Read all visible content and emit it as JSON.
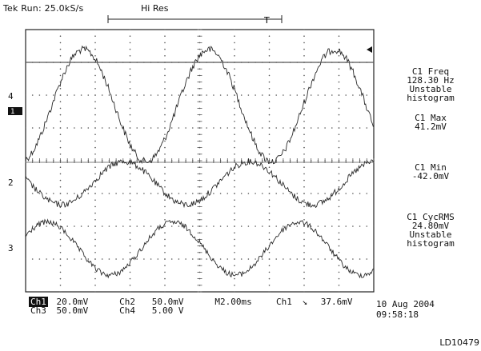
{
  "header": {
    "status": "Tek Run: 25.0kS/s",
    "mode": "Hi Res",
    "trigger_marker": "T"
  },
  "screen": {
    "grid_divisions_x": 10,
    "grid_divisions_y": 8,
    "colors": {
      "trace": "#2a2a2a",
      "grid": "#555555",
      "background": "#ffffff"
    }
  },
  "channel_markers": {
    "ch1": "4",
    "ch2": "2",
    "ch3": "3"
  },
  "measurements": [
    {
      "lines": [
        "C1 Freq",
        "128.30 Hz",
        "Unstable",
        "histogram"
      ]
    },
    {
      "lines": [
        "C1 Max",
        "41.2mV"
      ]
    },
    {
      "lines": [
        "C1 Min",
        "-42.0mV"
      ]
    },
    {
      "lines": [
        "C1 CycRMS",
        "24.80mV",
        "Unstable",
        "histogram"
      ]
    }
  ],
  "channel_settings": {
    "row1": {
      "ch_a": "Ch1",
      "scale_a": "20.0mV",
      "ch_b": "Ch2",
      "scale_b": "50.0mV",
      "timebase": "M2.00ms",
      "trigger_src": "Ch1",
      "trigger_slope": "↘",
      "trigger_level": "37.6mV"
    },
    "row2": {
      "ch_a": "Ch3",
      "scale_a": "50.0mV",
      "ch_b": "Ch4",
      "scale_b": "5.00 V"
    }
  },
  "footer": {
    "date": "10 Aug 2004",
    "time": "09:58:18",
    "figure_id": "LD10479"
  }
}
